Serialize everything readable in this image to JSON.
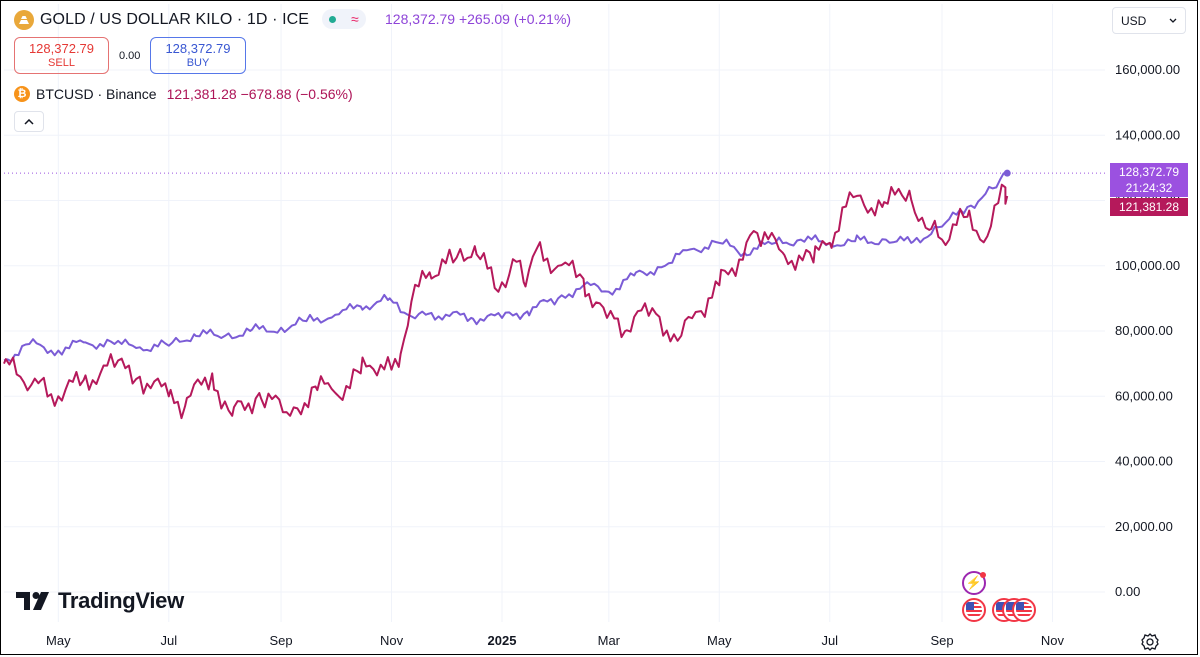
{
  "header": {
    "title": "GOLD / US DOLLAR KILO · 1D · ICE",
    "last_price": "128,372.79",
    "change": "+265.09",
    "change_pct": "(+0.21%)"
  },
  "trade": {
    "sell_price": "128,372.79",
    "sell_label": "SELL",
    "spread": "0.00",
    "buy_price": "128,372.79",
    "buy_label": "BUY"
  },
  "compare": {
    "symbol": "BTCUSD",
    "exchange": "Binance",
    "symbol_line": "BTCUSD · Binance",
    "last_price": "121,381.28",
    "change": "−678.88",
    "change_pct": "(−0.56%)"
  },
  "currency_selector": {
    "value": "USD"
  },
  "branding": {
    "name": "TradingView"
  },
  "price_labels": {
    "gold_price": "128,372.79",
    "countdown": "21:24:32",
    "btc_price": "121,381.28"
  },
  "icons": [
    "gold-symbol-icon",
    "live-dot-icon",
    "compare-wave-icon",
    "chevron-up-icon",
    "chevron-down-icon",
    "bitcoin-icon",
    "lightning-event-icon",
    "us-flag-icon",
    "settings-gear-icon",
    "tradingview-logo-icon"
  ],
  "colors": {
    "gold_line": "#7b5cd6",
    "btc_line": "#b5195b",
    "sell": "#e53935",
    "buy": "#3957d2",
    "gold_label": "#9b51e0",
    "btc_label": "#b5195b"
  },
  "chart_data": {
    "type": "line",
    "x_ticks": [
      "May",
      "Jul",
      "Sep",
      "Nov",
      "2025",
      "Mar",
      "May",
      "Jul",
      "Sep",
      "Nov"
    ],
    "y_ticks": [
      "160,000.00",
      "140,000.00",
      "120,000.00",
      "100,000.00",
      "80,000.00",
      "60,000.00",
      "40,000.00",
      "20,000.00",
      "0.00"
    ],
    "ylim": [
      -3000,
      170000
    ],
    "grid": true,
    "legend": "top-left",
    "x_range": [
      "2024-04-01",
      "2025-11-30"
    ],
    "series": [
      {
        "name": "GOLD / US DOLLAR KILO",
        "points": [
          [
            "2024-04-01",
            71000
          ],
          [
            "2024-04-15",
            76000
          ],
          [
            "2024-05-01",
            74000
          ],
          [
            "2024-05-15",
            76500
          ],
          [
            "2024-06-01",
            76000
          ],
          [
            "2024-06-15",
            75000
          ],
          [
            "2024-07-01",
            75500
          ],
          [
            "2024-07-15",
            79000
          ],
          [
            "2024-08-01",
            78500
          ],
          [
            "2024-08-15",
            80000
          ],
          [
            "2024-09-01",
            81000
          ],
          [
            "2024-09-15",
            83000
          ],
          [
            "2024-10-01",
            85000
          ],
          [
            "2024-10-15",
            87500
          ],
          [
            "2024-10-30",
            89500
          ],
          [
            "2024-11-10",
            85000
          ],
          [
            "2024-11-20",
            85000
          ],
          [
            "2024-12-01",
            85000
          ],
          [
            "2024-12-15",
            84000
          ],
          [
            "2025-01-01",
            84000
          ],
          [
            "2025-01-15",
            86000
          ],
          [
            "2025-02-01",
            90000
          ],
          [
            "2025-02-15",
            94000
          ],
          [
            "2025-03-01",
            92000
          ],
          [
            "2025-03-15",
            97000
          ],
          [
            "2025-04-01",
            100000
          ],
          [
            "2025-04-15",
            105000
          ],
          [
            "2025-05-01",
            107000
          ],
          [
            "2025-05-15",
            104000
          ],
          [
            "2025-06-01",
            107000
          ],
          [
            "2025-06-15",
            108000
          ],
          [
            "2025-07-01",
            107000
          ],
          [
            "2025-07-15",
            107500
          ],
          [
            "2025-08-01",
            108000
          ],
          [
            "2025-08-15",
            107000
          ],
          [
            "2025-09-01",
            112000
          ],
          [
            "2025-09-15",
            118000
          ],
          [
            "2025-10-01",
            124000
          ],
          [
            "2025-10-07",
            128372.79
          ]
        ]
      },
      {
        "name": "BTCUSD · Binance",
        "points": [
          [
            "2024-04-01",
            70000
          ],
          [
            "2024-04-10",
            66000
          ],
          [
            "2024-04-20",
            64000
          ],
          [
            "2024-05-01",
            60000
          ],
          [
            "2024-05-15",
            65000
          ],
          [
            "2024-06-01",
            69000
          ],
          [
            "2024-06-15",
            66000
          ],
          [
            "2024-07-01",
            60000
          ],
          [
            "2024-07-10",
            57000
          ],
          [
            "2024-07-25",
            67000
          ],
          [
            "2024-08-05",
            54000
          ],
          [
            "2024-08-20",
            61000
          ],
          [
            "2024-09-06",
            54000
          ],
          [
            "2024-09-20",
            63000
          ],
          [
            "2024-10-01",
            61000
          ],
          [
            "2024-10-15",
            67000
          ],
          [
            "2024-10-30",
            72000
          ],
          [
            "2024-11-05",
            69000
          ],
          [
            "2024-11-12",
            89000
          ],
          [
            "2024-11-22",
            98000
          ],
          [
            "2024-12-05",
            101000
          ],
          [
            "2024-12-17",
            106000
          ],
          [
            "2024-12-30",
            92000
          ],
          [
            "2025-01-07",
            102000
          ],
          [
            "2025-01-13",
            95000
          ],
          [
            "2025-01-20",
            105000
          ],
          [
            "2025-02-01",
            100000
          ],
          [
            "2025-02-15",
            96000
          ],
          [
            "2025-02-28",
            84000
          ],
          [
            "2025-03-10",
            80000
          ],
          [
            "2025-03-25",
            87000
          ],
          [
            "2025-04-08",
            77000
          ],
          [
            "2025-04-20",
            86000
          ],
          [
            "2025-05-01",
            94000
          ],
          [
            "2025-05-22",
            110000
          ],
          [
            "2025-06-05",
            104000
          ],
          [
            "2025-06-22",
            101000
          ],
          [
            "2025-07-01",
            107000
          ],
          [
            "2025-07-14",
            121000
          ],
          [
            "2025-07-30",
            118000
          ],
          [
            "2025-08-14",
            123000
          ],
          [
            "2025-08-25",
            111000
          ],
          [
            "2025-09-01",
            108000
          ],
          [
            "2025-09-15",
            115000
          ],
          [
            "2025-09-26",
            109000
          ],
          [
            "2025-10-06",
            124000
          ],
          [
            "2025-10-07",
            121381.28
          ]
        ]
      }
    ]
  }
}
